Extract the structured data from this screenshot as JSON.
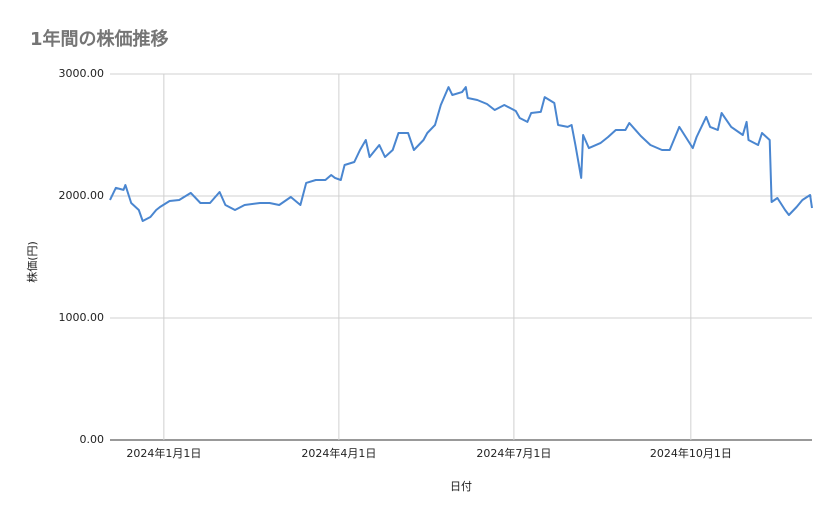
{
  "chart_data": {
    "type": "line",
    "title": "1年間の株価推移",
    "x_label": "日付",
    "y_label": "株価(円)",
    "x": [
      "2023-12-04",
      "2023-12-07",
      "2023-12-11",
      "2023-12-12",
      "2023-12-15",
      "2023-12-19",
      "2023-12-21",
      "2023-12-25",
      "2023-12-28",
      "2023-12-30",
      "2024-01-04",
      "2024-01-09",
      "2024-01-15",
      "2024-01-20",
      "2024-01-25",
      "2024-01-30",
      "2024-02-02",
      "2024-02-07",
      "2024-02-12",
      "2024-02-20",
      "2024-02-25",
      "2024-03-01",
      "2024-03-07",
      "2024-03-12",
      "2024-03-15",
      "2024-03-20",
      "2024-03-25",
      "2024-03-28",
      "2024-03-30",
      "2024-04-02",
      "2024-04-04",
      "2024-04-09",
      "2024-04-12",
      "2024-04-15",
      "2024-04-17",
      "2024-04-22",
      "2024-04-25",
      "2024-04-29",
      "2024-05-02",
      "2024-05-07",
      "2024-05-10",
      "2024-05-15",
      "2024-05-17",
      "2024-05-21",
      "2024-05-24",
      "2024-05-28",
      "2024-05-30",
      "2024-06-04",
      "2024-06-06",
      "2024-06-07",
      "2024-06-12",
      "2024-06-17",
      "2024-06-21",
      "2024-06-26",
      "2024-07-02",
      "2024-07-04",
      "2024-07-08",
      "2024-07-10",
      "2024-07-15",
      "2024-07-17",
      "2024-07-22",
      "2024-07-24",
      "2024-07-29",
      "2024-07-31",
      "2024-08-02",
      "2024-08-05",
      "2024-08-06",
      "2024-08-09",
      "2024-08-15",
      "2024-08-19",
      "2024-08-23",
      "2024-08-28",
      "2024-08-30",
      "2024-09-05",
      "2024-09-10",
      "2024-09-16",
      "2024-09-20",
      "2024-09-25",
      "2024-10-02",
      "2024-10-04",
      "2024-10-09",
      "2024-10-11",
      "2024-10-15",
      "2024-10-17",
      "2024-10-22",
      "2024-10-28",
      "2024-10-30",
      "2024-10-31",
      "2024-11-05",
      "2024-11-07",
      "2024-11-11",
      "2024-11-12",
      "2024-11-15",
      "2024-11-19",
      "2024-11-21",
      "2024-11-25",
      "2024-11-28",
      "2024-12-02",
      "2024-12-03"
    ],
    "series": [
      {
        "name": "株価",
        "color": "#4a86d0",
        "values": [
          1967,
          2066,
          2050,
          2090,
          1943,
          1885,
          1795,
          1828,
          1885,
          1910,
          1959,
          1967,
          2025,
          1943,
          1943,
          2033,
          1926,
          1885,
          1926,
          1943,
          1943,
          1926,
          1992,
          1926,
          2107,
          2131,
          2131,
          2172,
          2148,
          2131,
          2254,
          2279,
          2377,
          2459,
          2320,
          2418,
          2320,
          2377,
          2516,
          2516,
          2377,
          2459,
          2516,
          2582,
          2746,
          2893,
          2828,
          2852,
          2893,
          2803,
          2787,
          2754,
          2705,
          2746,
          2697,
          2639,
          2607,
          2680,
          2689,
          2811,
          2762,
          2582,
          2566,
          2582,
          2418,
          2148,
          2500,
          2393,
          2434,
          2484,
          2541,
          2541,
          2598,
          2492,
          2418,
          2377,
          2377,
          2566,
          2393,
          2484,
          2648,
          2566,
          2541,
          2680,
          2566,
          2500,
          2607,
          2459,
          2418,
          2516,
          2459,
          1951,
          1984,
          1885,
          1844,
          1910,
          1967,
          2008,
          1902
        ]
      }
    ],
    "xlim": [
      "2023-12-04",
      "2024-12-03"
    ],
    "xticks": [
      {
        "value": "2024-01-01",
        "label": "2024年1月1日"
      },
      {
        "value": "2024-04-01",
        "label": "2024年4月1日"
      },
      {
        "value": "2024-07-01",
        "label": "2024年7月1日"
      },
      {
        "value": "2024-10-01",
        "label": "2024年10月1日"
      }
    ],
    "ylim": [
      0,
      3000
    ],
    "yticks": [
      {
        "value": 0,
        "label": "0.00"
      },
      {
        "value": 1000,
        "label": "1000.00"
      },
      {
        "value": 2000,
        "label": "2000.00"
      },
      {
        "value": 3000,
        "label": "3000.00"
      }
    ],
    "grid": true
  }
}
